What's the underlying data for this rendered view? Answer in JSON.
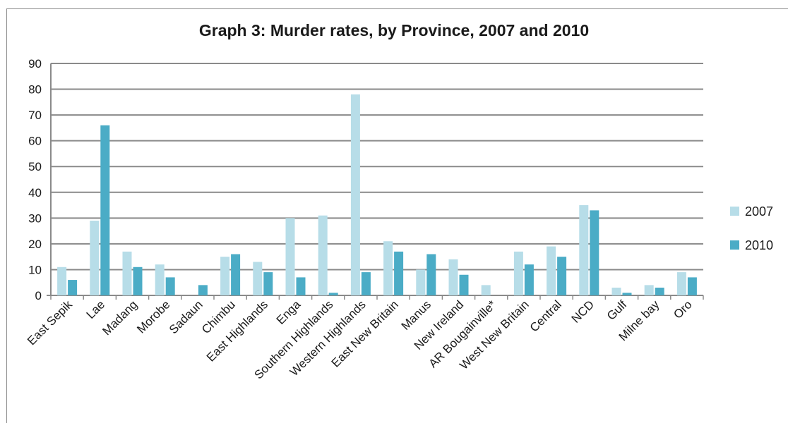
{
  "chart_data": {
    "type": "bar",
    "title": "Graph 3: Murder rates, by Province, 2007 and 2010",
    "xlabel": "",
    "ylabel": "",
    "ylim": [
      0,
      90
    ],
    "yticks": [
      0,
      10,
      20,
      30,
      40,
      50,
      60,
      70,
      80,
      90
    ],
    "grid": true,
    "legend_position": "right",
    "categories": [
      "East Sepik",
      "Lae",
      "Madang",
      "Morobe",
      "Sadaun",
      "Chimbu",
      "East Highlands",
      "Enga",
      "Southern Highlands",
      "Western Highlands",
      "East New Britain",
      "Manus",
      "New Ireland",
      "AR Bougainville*",
      "West New Britain",
      "Central",
      "NCD",
      "Gulf",
      "Milne bay",
      "Oro"
    ],
    "series": [
      {
        "name": "2007",
        "color": "#b7dde8",
        "values": [
          11,
          29,
          17,
          12,
          0,
          15,
          13,
          30,
          31,
          78,
          21,
          10,
          14,
          4,
          17,
          19,
          35,
          3,
          4,
          9
        ]
      },
      {
        "name": "2010",
        "color": "#4bacc6",
        "values": [
          6,
          66,
          11,
          7,
          4,
          16,
          9,
          7,
          1,
          9,
          17,
          16,
          8,
          0,
          12,
          15,
          33,
          1,
          3,
          7
        ]
      }
    ]
  }
}
